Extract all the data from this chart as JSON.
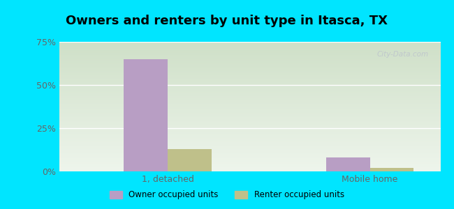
{
  "title": "Owners and renters by unit type in Itasca, TX",
  "categories": [
    "1, detached",
    "Mobile home"
  ],
  "owner_values": [
    65.0,
    8.0
  ],
  "renter_values": [
    13.0,
    2.0
  ],
  "owner_color": "#b89ec4",
  "renter_color": "#bfc08a",
  "ylim": [
    0,
    75
  ],
  "yticks": [
    0,
    25,
    50,
    75
  ],
  "ytick_labels": [
    "0%",
    "25%",
    "50%",
    "75%"
  ],
  "bg_cyan": "#00e5ff",
  "watermark": "City-Data.com",
  "legend_owner": "Owner occupied units",
  "legend_renter": "Renter occupied units",
  "bar_width": 0.38,
  "group_positions": [
    0.75,
    2.5
  ],
  "xlim": [
    0.0,
    3.3
  ],
  "title_fontsize": 13,
  "tick_fontsize": 9,
  "grad_top_left": "#cfe0c8",
  "grad_bottom_right": "#eef5ec"
}
